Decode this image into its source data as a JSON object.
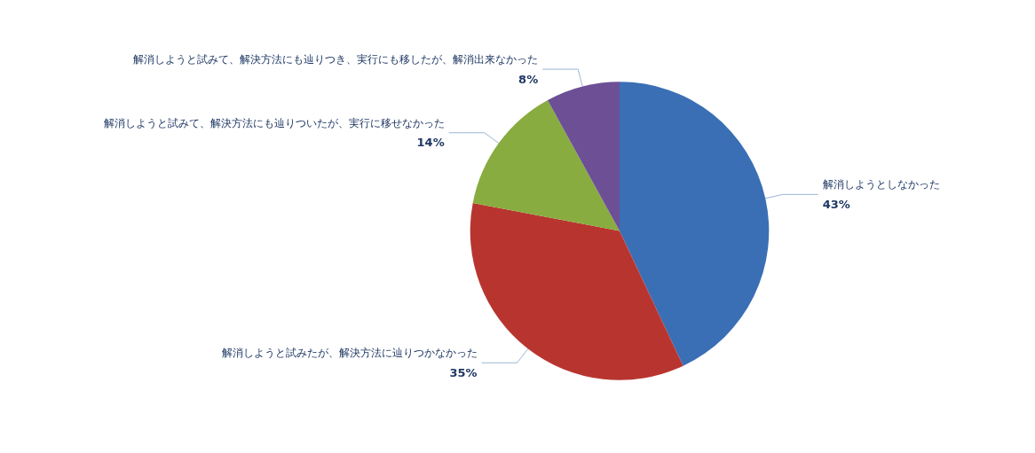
{
  "chart_data": {
    "type": "pie",
    "categories": [
      "解消しようとしなかった",
      "解消しようと試みたが、解決方法に辿りつかなかった",
      "解消しようと試みて、解決方法にも辿りついたが、実行に移せなかった",
      "解消しようと試みて、解決方法にも辿りつき、実行にも移したが、解消出来なかった"
    ],
    "values": [
      43,
      35,
      14,
      8
    ],
    "value_labels": [
      "43%",
      "35%",
      "14%",
      "8%"
    ],
    "colors": [
      "#3a6fb5",
      "#b8352f",
      "#88ac3f",
      "#6d4f96"
    ],
    "legend": false
  }
}
